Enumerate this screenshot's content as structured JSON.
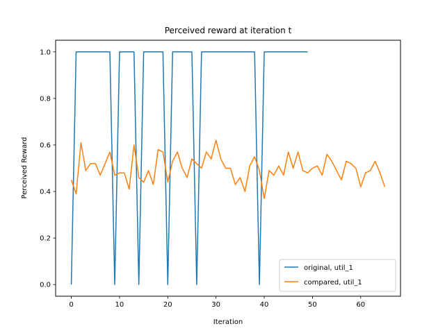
{
  "chart_data": {
    "type": "line",
    "title": "Perceived reward at iteration t",
    "xlabel": "Iteration",
    "ylabel": "Perceived Reward",
    "xlim": [
      -3.25,
      68.25
    ],
    "ylim": [
      -0.05,
      1.05
    ],
    "xticks": [
      0,
      10,
      20,
      30,
      40,
      50,
      60
    ],
    "yticks": [
      0.0,
      0.2,
      0.4,
      0.6,
      0.8,
      1.0
    ],
    "xtick_labels": [
      "0",
      "10",
      "20",
      "30",
      "40",
      "50",
      "60"
    ],
    "ytick_labels": [
      "0.0",
      "0.2",
      "0.4",
      "0.6",
      "0.8",
      "1.0"
    ],
    "grid": false,
    "legend_position": "lower-right",
    "series": [
      {
        "name": "original, util_1",
        "color": "#1f77b4",
        "x": [
          0,
          1,
          2,
          3,
          4,
          5,
          6,
          7,
          8,
          9,
          10,
          11,
          12,
          13,
          14,
          15,
          16,
          17,
          18,
          19,
          20,
          21,
          22,
          23,
          24,
          25,
          26,
          27,
          28,
          29,
          30,
          31,
          32,
          33,
          34,
          35,
          36,
          37,
          38,
          39,
          40,
          41,
          42,
          43,
          44,
          45,
          46,
          47,
          48,
          49
        ],
        "values": [
          0,
          1,
          1,
          1,
          1,
          1,
          1,
          1,
          1,
          0,
          1,
          1,
          1,
          1,
          0,
          1,
          1,
          1,
          1,
          1,
          0,
          1,
          1,
          1,
          1,
          1,
          0,
          1,
          1,
          1,
          1,
          1,
          1,
          1,
          1,
          1,
          1,
          1,
          1,
          0,
          1,
          1,
          1,
          1,
          1,
          1,
          1,
          1,
          1,
          1
        ]
      },
      {
        "name": "compared, util_1",
        "color": "#ff7f0e",
        "x": [
          0,
          1,
          2,
          3,
          4,
          5,
          6,
          7,
          8,
          9,
          10,
          11,
          12,
          13,
          14,
          15,
          16,
          17,
          18,
          19,
          20,
          21,
          22,
          23,
          24,
          25,
          26,
          27,
          28,
          29,
          30,
          31,
          32,
          33,
          34,
          35,
          36,
          37,
          38,
          39,
          40,
          41,
          42,
          43,
          44,
          45,
          46,
          47,
          48,
          49,
          50,
          51,
          52,
          53,
          54,
          55,
          56,
          57,
          58,
          59,
          60,
          61,
          62,
          63,
          64,
          65
        ],
        "values": [
          0.45,
          0.39,
          0.61,
          0.49,
          0.52,
          0.52,
          0.47,
          0.52,
          0.57,
          0.47,
          0.48,
          0.48,
          0.41,
          0.6,
          0.46,
          0.44,
          0.49,
          0.43,
          0.58,
          0.57,
          0.44,
          0.53,
          0.57,
          0.5,
          0.46,
          0.54,
          0.52,
          0.5,
          0.57,
          0.54,
          0.62,
          0.54,
          0.5,
          0.5,
          0.43,
          0.46,
          0.4,
          0.51,
          0.55,
          0.49,
          0.37,
          0.49,
          0.47,
          0.51,
          0.47,
          0.57,
          0.5,
          0.57,
          0.49,
          0.48,
          0.5,
          0.51,
          0.47,
          0.56,
          0.53,
          0.49,
          0.45,
          0.53,
          0.52,
          0.5,
          0.42,
          0.48,
          0.49,
          0.53,
          0.48,
          0.42
        ]
      }
    ]
  }
}
